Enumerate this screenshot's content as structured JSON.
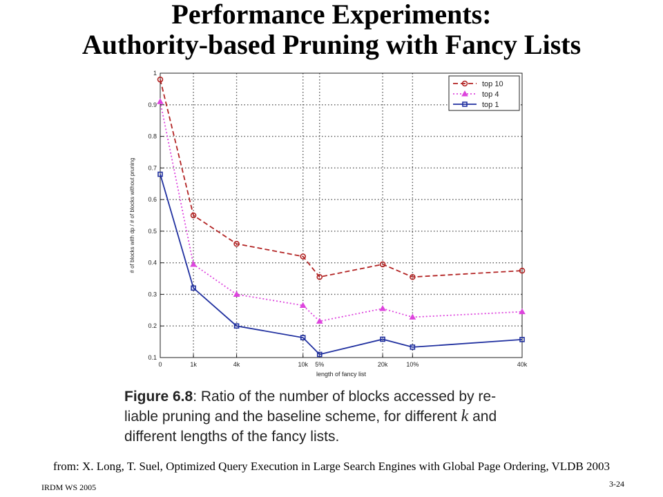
{
  "slide": {
    "title_line1": "Performance Experiments:",
    "title_line2": "Authority-based Pruning with Fancy Lists",
    "caption_label": "Figure 6.8",
    "caption_text_1": ": Ratio of the number of blocks accessed by re-",
    "caption_text_2a": "liable pruning and the baseline scheme, for different ",
    "caption_k": "k",
    "caption_text_2b": " and",
    "caption_text_3": "different lengths of the fancy lists.",
    "source": "from: X. Long, T. Suel, Optimized Query Execution in Large Search Engines with Global Page Ordering, VLDB 2003",
    "footer_left": "IRDM WS 2005",
    "footer_right": "3-24"
  },
  "chart_data": {
    "type": "line",
    "xlabel": "length of fancy list",
    "ylabel": "# of blocks with dp / # of blocks without pruning",
    "categories": [
      "0",
      "1k",
      "4k",
      "10k",
      "5%",
      "20k",
      "10%",
      "40k"
    ],
    "x_positions": [
      0,
      1,
      2.3,
      4.3,
      4.8,
      6.7,
      7.6,
      10.9
    ],
    "ylim": [
      0.1,
      1
    ],
    "yticks": [
      0.1,
      0.2,
      0.3,
      0.4,
      0.5,
      0.6,
      0.7,
      0.8,
      0.9,
      1
    ],
    "ytick_labels": [
      "0.1",
      "0.2",
      "0.3",
      "0.4",
      "0.5",
      "0.6",
      "0.7",
      "0.8",
      "0.9",
      "1"
    ],
    "grid": true,
    "legend_position": "top-right",
    "series": [
      {
        "name": "top 10",
        "color": "#b22222",
        "dash": "7,4",
        "marker": "circle",
        "values": [
          0.98,
          0.55,
          0.46,
          0.42,
          0.355,
          0.395,
          0.355,
          0.375
        ]
      },
      {
        "name": "top 4",
        "color": "#dd44dd",
        "dash": "2,3",
        "marker": "triangle",
        "values": [
          0.91,
          0.395,
          0.3,
          0.265,
          0.215,
          0.255,
          0.228,
          0.245
        ]
      },
      {
        "name": "top 1",
        "color": "#1f2f9f",
        "dash": "",
        "marker": "square",
        "values": [
          0.68,
          0.32,
          0.2,
          0.163,
          0.11,
          0.158,
          0.133,
          0.157
        ]
      }
    ]
  }
}
